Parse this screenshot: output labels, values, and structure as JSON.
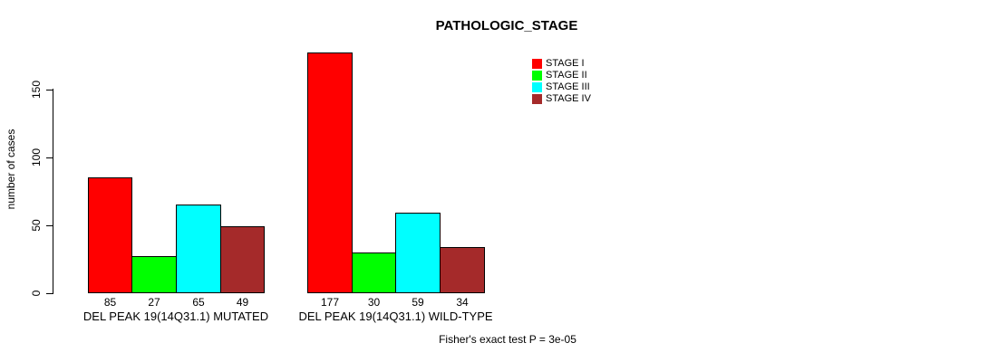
{
  "chart_data": {
    "type": "bar",
    "title": "PATHOLOGIC_STAGE",
    "ylabel": "number of cases",
    "xlabel": "",
    "ylim": [
      0,
      180
    ],
    "yticks": [
      "0",
      "50",
      "100",
      "150"
    ],
    "grid": false,
    "legend_position": "top-right",
    "categories": [
      "DEL PEAK 19(14Q31.1) MUTATED",
      "DEL PEAK 19(14Q31.1) WILD-TYPE"
    ],
    "series": [
      {
        "name": "STAGE I",
        "color": "#FF0000",
        "values": [
          85,
          177
        ]
      },
      {
        "name": "STAGE II",
        "color": "#00FF00",
        "values": [
          27,
          30
        ]
      },
      {
        "name": "STAGE III",
        "color": "#00FFFF",
        "values": [
          65,
          59
        ]
      },
      {
        "name": "STAGE IV",
        "color": "#A52A2A",
        "values": [
          49,
          34
        ]
      }
    ],
    "bar_value_labels": [
      [
        "85",
        "27",
        "65",
        "49"
      ],
      [
        "177",
        "30",
        "59",
        "34"
      ]
    ],
    "annotation": "Fisher's exact test P = 3e-05",
    "axis_color": "#000000",
    "background_color": "#FFFFFF"
  }
}
